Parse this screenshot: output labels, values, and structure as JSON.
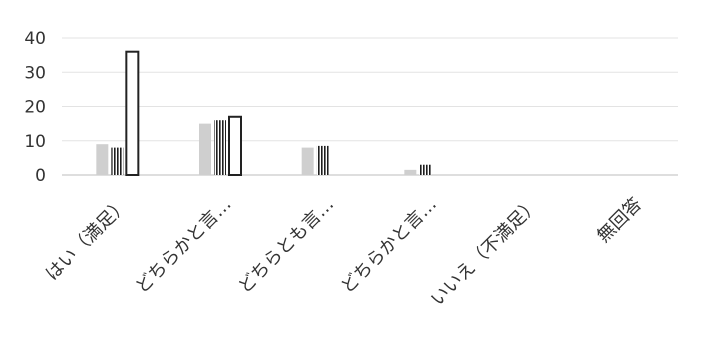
{
  "chart_data": {
    "type": "bar",
    "categories": [
      "はい（満足）",
      "どちらかと言…",
      "どちらとも言…",
      "どちらかと言…",
      "いいえ（不満足）",
      "無回答"
    ],
    "series": [
      {
        "values": [
          9,
          15,
          8,
          1.5,
          0,
          0
        ],
        "color": "#cfcfcf",
        "pattern": "solid-gray"
      },
      {
        "values": [
          8,
          16,
          8.5,
          3,
          0,
          0
        ],
        "color": "#222222",
        "pattern": "vertical-stripes"
      },
      {
        "values": [
          36,
          17,
          0,
          0,
          0,
          0
        ],
        "color": "#222222",
        "pattern": "outline"
      }
    ],
    "yticks": [
      0,
      10,
      20,
      30,
      40
    ],
    "ylim": [
      0,
      40
    ],
    "grid": true,
    "legend": "none"
  }
}
